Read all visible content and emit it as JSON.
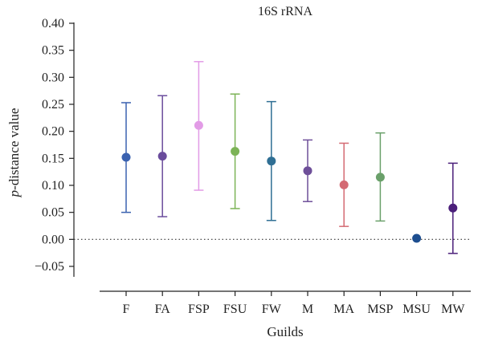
{
  "chart_data": {
    "type": "scatter",
    "title": "16S rRNA",
    "xlabel": "Guilds",
    "ylabel_italic": "p",
    "ylabel_rest": "-distance value",
    "ylim": [
      -0.075,
      0.4
    ],
    "yticks": [
      -0.05,
      0.0,
      0.05,
      0.1,
      0.15,
      0.2,
      0.25,
      0.3,
      0.35,
      0.4
    ],
    "ytick_labels": [
      "−0.05",
      "0.00",
      "0.05",
      "0.10",
      "0.15",
      "0.20",
      "0.25",
      "0.30",
      "0.35",
      "0.40"
    ],
    "reference_line": 0.0,
    "grid": false,
    "categories": [
      "F",
      "FA",
      "FSP",
      "FSU",
      "FW",
      "M",
      "MA",
      "MSP",
      "MSU",
      "MW"
    ],
    "points": [
      {
        "category": "F",
        "mean": 0.152,
        "lower": 0.05,
        "upper": 0.253,
        "color": "#3b62b0"
      },
      {
        "category": "FA",
        "mean": 0.154,
        "lower": 0.042,
        "upper": 0.266,
        "color": "#6a4c9c"
      },
      {
        "category": "FSP",
        "mean": 0.211,
        "lower": 0.091,
        "upper": 0.329,
        "color": "#e29be6"
      },
      {
        "category": "FSU",
        "mean": 0.163,
        "lower": 0.057,
        "upper": 0.269,
        "color": "#7cb356"
      },
      {
        "category": "FW",
        "mean": 0.145,
        "lower": 0.035,
        "upper": 0.255,
        "color": "#2f6f94"
      },
      {
        "category": "M",
        "mean": 0.127,
        "lower": 0.07,
        "upper": 0.184,
        "color": "#6e4f99"
      },
      {
        "category": "MA",
        "mean": 0.101,
        "lower": 0.024,
        "upper": 0.178,
        "color": "#d46a73"
      },
      {
        "category": "MSP",
        "mean": 0.115,
        "lower": 0.034,
        "upper": 0.197,
        "color": "#6aa06a"
      },
      {
        "category": "MSU",
        "mean": 0.002,
        "lower": 0.002,
        "upper": 0.002,
        "color": "#1d4e8f"
      },
      {
        "category": "MW",
        "mean": 0.058,
        "lower": -0.026,
        "upper": 0.141,
        "color": "#4b1f7a"
      }
    ]
  }
}
